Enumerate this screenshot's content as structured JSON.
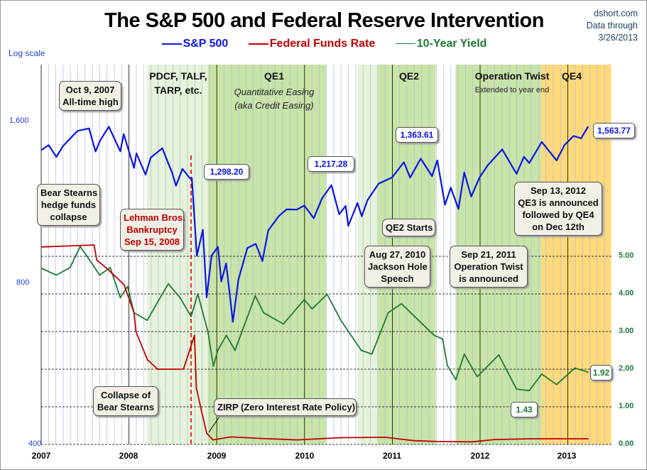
{
  "title": "The S&P 500 and Federal Reserve Intervention",
  "source": {
    "site": "dshort.com",
    "data_through_label": "Data through",
    "date": "3/26/2013"
  },
  "log_scale_label": "Log scale",
  "colors": {
    "sp500": "#0a14e6",
    "fed": "#c00000",
    "yield": "#1e7a32",
    "light_green": "#e6f3d8",
    "green": "#c8e4a6",
    "orange": "#ffd97a"
  },
  "regions": [
    {
      "label": "PDCF, TALF,",
      "label2": "TARP, etc.",
      "start": "2008-03-15",
      "end": "2008-11-25",
      "color": "light_green"
    },
    {
      "label": "QE1",
      "sub1": "Quantitative Easing",
      "sub2": "(aka Credit Easing)",
      "start": "2008-11-25",
      "end": "2010-03-31",
      "color": "green"
    },
    {
      "label": "",
      "start": "2010-08-10",
      "end": "2010-11-03",
      "color": "light_green"
    },
    {
      "label": "QE2",
      "start": "2010-11-03",
      "end": "2011-06-30",
      "color": "green"
    },
    {
      "label": "Operation Twist",
      "sub1": "Extended to year end",
      "start": "2011-09-21",
      "end": "2012-09-13",
      "color": "green"
    },
    {
      "label": "QE4",
      "start": "2012-09-13",
      "end": "2013-06-30",
      "color": "orange"
    }
  ],
  "callouts": {
    "ath": [
      "Oct 9, 2007",
      "All-time high"
    ],
    "bear_hedge": [
      "Bear Stearns",
      "hedge funds",
      "collapse"
    ],
    "lehman": [
      "Lehman Bros.",
      "Bankruptcy",
      "Sep 15, 2008"
    ],
    "qe2": [
      "QE2 Starts"
    ],
    "jackson": [
      "Aug 27, 2010",
      "Jackson Hole",
      "Speech"
    ],
    "twist": [
      "Sep 21, 2011",
      "Operation Twist",
      "is announced"
    ],
    "qe3": [
      "Sep 13, 2012",
      "QE3 is announced",
      "followed by QE4",
      "on Dec 12th"
    ],
    "bear_collapse": [
      "Collapse of",
      "Bear Stearns"
    ],
    "zirp": [
      "ZIRP (Zero Interest Rate Policy)"
    ],
    "v1298": "1,298.20",
    "v1217": "1,217.28",
    "v1363": "1,363.61",
    "v1563": "1,563.77",
    "v143": "1.43",
    "v192": "1.92"
  },
  "chart_data": {
    "type": "line",
    "title": "The S&P 500 and Federal Reserve Intervention",
    "x_ticks": [
      "2007",
      "2008",
      "2009",
      "2010",
      "2011",
      "2012",
      "2013"
    ],
    "y_left": {
      "scale": "log",
      "ticks": [
        "400",
        "800",
        "1,600"
      ],
      "range": [
        400,
        1600
      ]
    },
    "y_right": {
      "scale": "linear",
      "ticks": [
        "0.00",
        "1.00",
        "2.00",
        "3.00",
        "4.00",
        "5.00"
      ],
      "range": [
        0,
        5
      ]
    },
    "grid": "vertical monthly lines, dashed horizontal at right-axis ticks",
    "legend": "top-center",
    "series": [
      {
        "name": "S&P 500",
        "axis": "left",
        "color": "#0a14e6",
        "points": [
          [
            "2007-01-03",
            1416
          ],
          [
            "2007-02-01",
            1445
          ],
          [
            "2007-03-05",
            1374
          ],
          [
            "2007-04-02",
            1440
          ],
          [
            "2007-05-01",
            1486
          ],
          [
            "2007-06-01",
            1536
          ],
          [
            "2007-07-19",
            1553
          ],
          [
            "2007-08-15",
            1406
          ],
          [
            "2007-09-03",
            1474
          ],
          [
            "2007-10-09",
            1565
          ],
          [
            "2007-11-26",
            1407
          ],
          [
            "2007-12-10",
            1515
          ],
          [
            "2008-01-22",
            1310
          ],
          [
            "2008-02-01",
            1395
          ],
          [
            "2008-03-10",
            1273
          ],
          [
            "2008-04-01",
            1370
          ],
          [
            "2008-05-19",
            1426
          ],
          [
            "2008-06-30",
            1280
          ],
          [
            "2008-07-15",
            1214
          ],
          [
            "2008-08-11",
            1305
          ],
          [
            "2008-09-12",
            1252
          ],
          [
            "2008-09-19",
            1255
          ],
          [
            "2008-10-10",
            899
          ],
          [
            "2008-11-04",
            1005
          ],
          [
            "2008-11-20",
            752
          ],
          [
            "2008-12-10",
            899
          ],
          [
            "2009-01-06",
            934
          ],
          [
            "2009-01-20",
            805
          ],
          [
            "2009-02-09",
            870
          ],
          [
            "2009-03-09",
            677
          ],
          [
            "2009-04-01",
            811
          ],
          [
            "2009-05-08",
            929
          ],
          [
            "2009-06-12",
            946
          ],
          [
            "2009-07-10",
            879
          ],
          [
            "2009-08-03",
            1002
          ],
          [
            "2009-09-18",
            1068
          ],
          [
            "2009-10-19",
            1097
          ],
          [
            "2009-11-30",
            1096
          ],
          [
            "2009-12-31",
            1115
          ],
          [
            "2010-02-08",
            1056
          ],
          [
            "2010-03-15",
            1150
          ],
          [
            "2010-04-23",
            1217
          ],
          [
            "2010-05-25",
            1074
          ],
          [
            "2010-06-21",
            1113
          ],
          [
            "2010-07-02",
            1022
          ],
          [
            "2010-08-09",
            1127
          ],
          [
            "2010-08-27",
            1065
          ],
          [
            "2010-09-20",
            1142
          ],
          [
            "2010-11-05",
            1225
          ],
          [
            "2010-12-31",
            1258
          ],
          [
            "2011-02-18",
            1343
          ],
          [
            "2011-03-16",
            1257
          ],
          [
            "2011-04-29",
            1364
          ],
          [
            "2011-06-15",
            1265
          ],
          [
            "2011-07-07",
            1353
          ],
          [
            "2011-08-08",
            1119
          ],
          [
            "2011-09-01",
            1204
          ],
          [
            "2011-10-03",
            1099
          ],
          [
            "2011-10-27",
            1285
          ],
          [
            "2011-11-25",
            1159
          ],
          [
            "2011-12-30",
            1258
          ],
          [
            "2012-02-01",
            1324
          ],
          [
            "2012-04-02",
            1419
          ],
          [
            "2012-06-01",
            1278
          ],
          [
            "2012-07-02",
            1375
          ],
          [
            "2012-07-24",
            1338
          ],
          [
            "2012-09-14",
            1465
          ],
          [
            "2012-11-15",
            1353
          ],
          [
            "2012-12-18",
            1446
          ],
          [
            "2013-01-25",
            1503
          ],
          [
            "2013-02-25",
            1488
          ],
          [
            "2013-03-26",
            1563.77
          ]
        ]
      },
      {
        "name": "Federal Funds Rate",
        "axis": "right",
        "color": "#c00000",
        "points": [
          [
            "2007-01-03",
            5.25
          ],
          [
            "2007-08-09",
            5.3
          ],
          [
            "2007-08-20",
            4.9
          ],
          [
            "2007-09-18",
            4.75
          ],
          [
            "2007-10-31",
            4.5
          ],
          [
            "2007-12-11",
            4.25
          ],
          [
            "2008-01-22",
            3.5
          ],
          [
            "2008-01-30",
            3.0
          ],
          [
            "2008-03-18",
            2.25
          ],
          [
            "2008-04-30",
            2.0
          ],
          [
            "2008-08-15",
            2.0
          ],
          [
            "2008-09-15",
            2.6
          ],
          [
            "2008-09-30",
            2.9
          ],
          [
            "2008-10-08",
            1.5
          ],
          [
            "2008-10-29",
            0.9
          ],
          [
            "2008-11-20",
            0.3
          ],
          [
            "2008-12-16",
            0.12
          ],
          [
            "2009-03-01",
            0.2
          ],
          [
            "2009-07-01",
            0.16
          ],
          [
            "2009-12-01",
            0.12
          ],
          [
            "2010-06-01",
            0.18
          ],
          [
            "2010-12-01",
            0.19
          ],
          [
            "2011-04-01",
            0.1
          ],
          [
            "2011-07-01",
            0.08
          ],
          [
            "2011-12-01",
            0.07
          ],
          [
            "2012-03-01",
            0.13
          ],
          [
            "2012-08-01",
            0.15
          ],
          [
            "2013-03-26",
            0.15
          ]
        ]
      },
      {
        "name": "10-Year Yield",
        "axis": "right",
        "color": "#1e7a32",
        "points": [
          [
            "2007-01-03",
            4.68
          ],
          [
            "2007-03-05",
            4.5
          ],
          [
            "2007-05-01",
            4.7
          ],
          [
            "2007-06-12",
            5.26
          ],
          [
            "2007-08-01",
            4.8
          ],
          [
            "2007-09-01",
            4.5
          ],
          [
            "2007-10-15",
            4.7
          ],
          [
            "2007-11-26",
            3.9
          ],
          [
            "2007-12-26",
            4.2
          ],
          [
            "2008-01-22",
            3.5
          ],
          [
            "2008-03-17",
            3.3
          ],
          [
            "2008-05-01",
            3.8
          ],
          [
            "2008-06-13",
            4.27
          ],
          [
            "2008-08-01",
            3.9
          ],
          [
            "2008-09-16",
            3.4
          ],
          [
            "2008-10-14",
            4.0
          ],
          [
            "2008-11-25",
            3.0
          ],
          [
            "2008-12-18",
            2.08
          ],
          [
            "2009-01-05",
            2.5
          ],
          [
            "2009-02-10",
            2.9
          ],
          [
            "2009-03-18",
            2.5
          ],
          [
            "2009-06-10",
            3.95
          ],
          [
            "2009-07-15",
            3.5
          ],
          [
            "2009-10-05",
            3.2
          ],
          [
            "2009-12-31",
            3.85
          ],
          [
            "2010-02-01",
            3.6
          ],
          [
            "2010-04-05",
            3.99
          ],
          [
            "2010-06-01",
            3.3
          ],
          [
            "2010-08-25",
            2.5
          ],
          [
            "2010-10-08",
            2.4
          ],
          [
            "2010-12-15",
            3.5
          ],
          [
            "2011-02-08",
            3.74
          ],
          [
            "2011-06-24",
            2.9
          ],
          [
            "2011-07-29",
            2.8
          ],
          [
            "2011-08-18",
            2.1
          ],
          [
            "2011-09-22",
            1.72
          ],
          [
            "2011-10-27",
            2.4
          ],
          [
            "2011-12-20",
            1.8
          ],
          [
            "2012-03-19",
            2.38
          ],
          [
            "2012-06-01",
            1.47
          ],
          [
            "2012-07-24",
            1.43
          ],
          [
            "2012-09-14",
            1.87
          ],
          [
            "2012-11-15",
            1.59
          ],
          [
            "2013-01-30",
            2.03
          ],
          [
            "2013-03-26",
            1.92
          ]
        ]
      }
    ]
  }
}
